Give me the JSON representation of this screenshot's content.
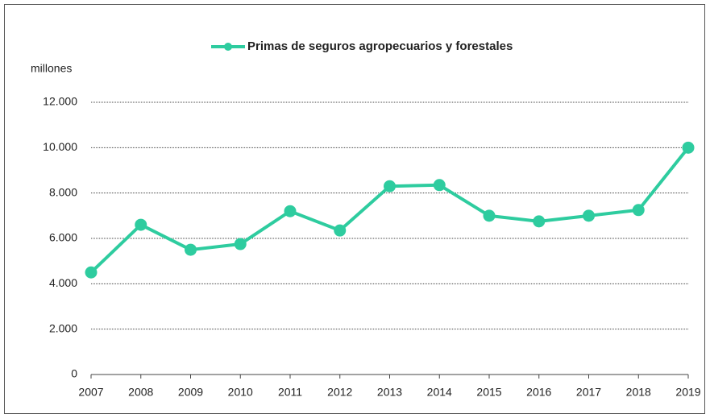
{
  "chart_data": {
    "type": "line",
    "title": "Primas de seguros agropecuarios y forestales",
    "y_label": "millones",
    "categories": [
      "2007",
      "2008",
      "2009",
      "2010",
      "2011",
      "2012",
      "2013",
      "2014",
      "2015",
      "2016",
      "2017",
      "2018",
      "2019"
    ],
    "series": [
      {
        "name": "Primas de seguros agropecuarios y forestales",
        "color": "#2ecc9f",
        "values": [
          4500,
          6600,
          5500,
          5750,
          7200,
          6350,
          8300,
          8350,
          7000,
          6750,
          7000,
          7250,
          10000
        ]
      }
    ],
    "ylim": [
      0,
      12000
    ],
    "yticks": [
      0,
      {
        "value": 2000,
        "label": "2.000"
      },
      {
        "value": 4000,
        "label": "4.000"
      },
      {
        "value": 6000,
        "label": "6.000"
      },
      {
        "value": 8000,
        "label": "8.000"
      },
      {
        "value": 10000,
        "label": "10.000"
      },
      {
        "value": 12000,
        "label": "12.000"
      }
    ],
    "grid": true,
    "legend": "top"
  }
}
